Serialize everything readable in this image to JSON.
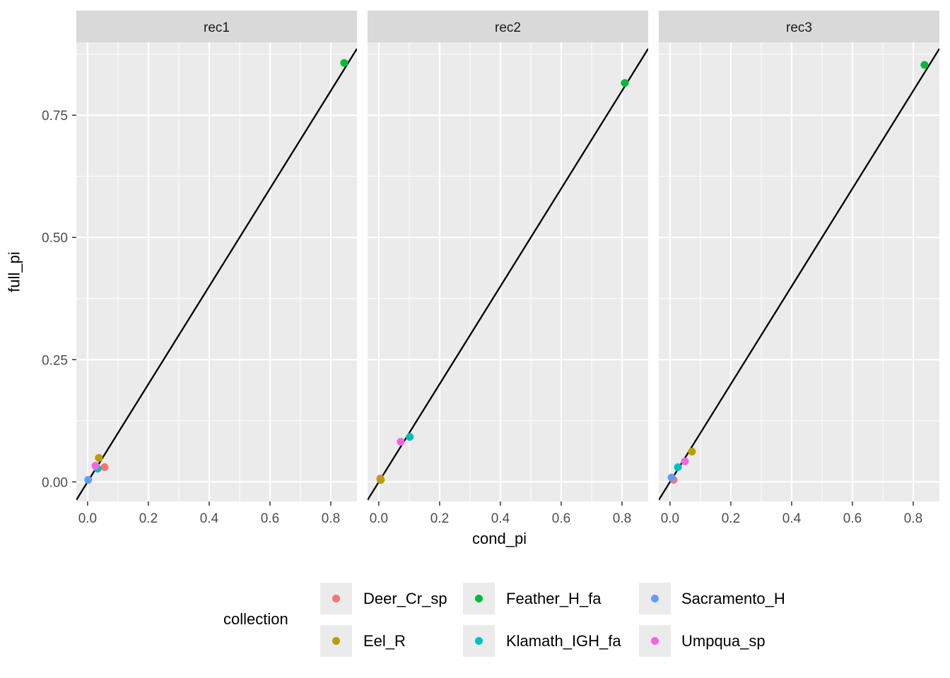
{
  "chart_data": {
    "type": "scatter",
    "xlabel": "cond_pi",
    "ylabel": "full_pi",
    "xlim": [
      -0.037,
      0.886
    ],
    "ylim": [
      -0.04,
      0.899
    ],
    "x_ticks": [
      0.0,
      0.2,
      0.4,
      0.6,
      0.8
    ],
    "x_tick_labels": [
      "0.0",
      "0.2",
      "0.4",
      "0.6",
      "0.8"
    ],
    "y_ticks": [
      0.0,
      0.25,
      0.5,
      0.75
    ],
    "y_tick_labels": [
      "0.00",
      "0.25",
      "0.50",
      "0.75"
    ],
    "grid": true,
    "reference_line": {
      "slope": 1,
      "intercept": 0
    },
    "legend": {
      "title": "collection",
      "placement": "bottom",
      "entries": [
        {
          "name": "Deer_Cr_sp",
          "color": "#F8766D"
        },
        {
          "name": "Eel_R",
          "color": "#B79F00"
        },
        {
          "name": "Feather_H_fa",
          "color": "#00BA38"
        },
        {
          "name": "Klamath_IGH_fa",
          "color": "#00BFC4"
        },
        {
          "name": "Sacramento_H",
          "color": "#619CFF"
        },
        {
          "name": "Umpqua_sp",
          "color": "#F564E3"
        }
      ]
    },
    "panels": [
      {
        "title": "rec1",
        "points": [
          {
            "collection": "Sacramento_H",
            "x": 0.002,
            "y": 0.004
          },
          {
            "collection": "Deer_Cr_sp",
            "x": 0.056,
            "y": 0.03
          },
          {
            "collection": "Klamath_IGH_fa",
            "x": 0.033,
            "y": 0.027
          },
          {
            "collection": "Umpqua_sp",
            "x": 0.026,
            "y": 0.033
          },
          {
            "collection": "Eel_R",
            "x": 0.037,
            "y": 0.049
          },
          {
            "collection": "Feather_H_fa",
            "x": 0.844,
            "y": 0.857
          }
        ]
      },
      {
        "title": "rec2",
        "points": [
          {
            "collection": "Sacramento_H",
            "x": 0.006,
            "y": 0.004
          },
          {
            "collection": "Deer_Cr_sp",
            "x": 0.005,
            "y": 0.007
          },
          {
            "collection": "Eel_R",
            "x": 0.007,
            "y": 0.004
          },
          {
            "collection": "Umpqua_sp",
            "x": 0.072,
            "y": 0.082
          },
          {
            "collection": "Klamath_IGH_fa",
            "x": 0.102,
            "y": 0.092
          },
          {
            "collection": "Feather_H_fa",
            "x": 0.809,
            "y": 0.816
          }
        ]
      },
      {
        "title": "rec3",
        "points": [
          {
            "collection": "Deer_Cr_sp",
            "x": 0.012,
            "y": 0.004
          },
          {
            "collection": "Sacramento_H",
            "x": 0.005,
            "y": 0.009
          },
          {
            "collection": "Klamath_IGH_fa",
            "x": 0.026,
            "y": 0.03
          },
          {
            "collection": "Umpqua_sp",
            "x": 0.049,
            "y": 0.042
          },
          {
            "collection": "Eel_R",
            "x": 0.072,
            "y": 0.062
          },
          {
            "collection": "Feather_H_fa",
            "x": 0.837,
            "y": 0.853
          }
        ]
      }
    ]
  }
}
